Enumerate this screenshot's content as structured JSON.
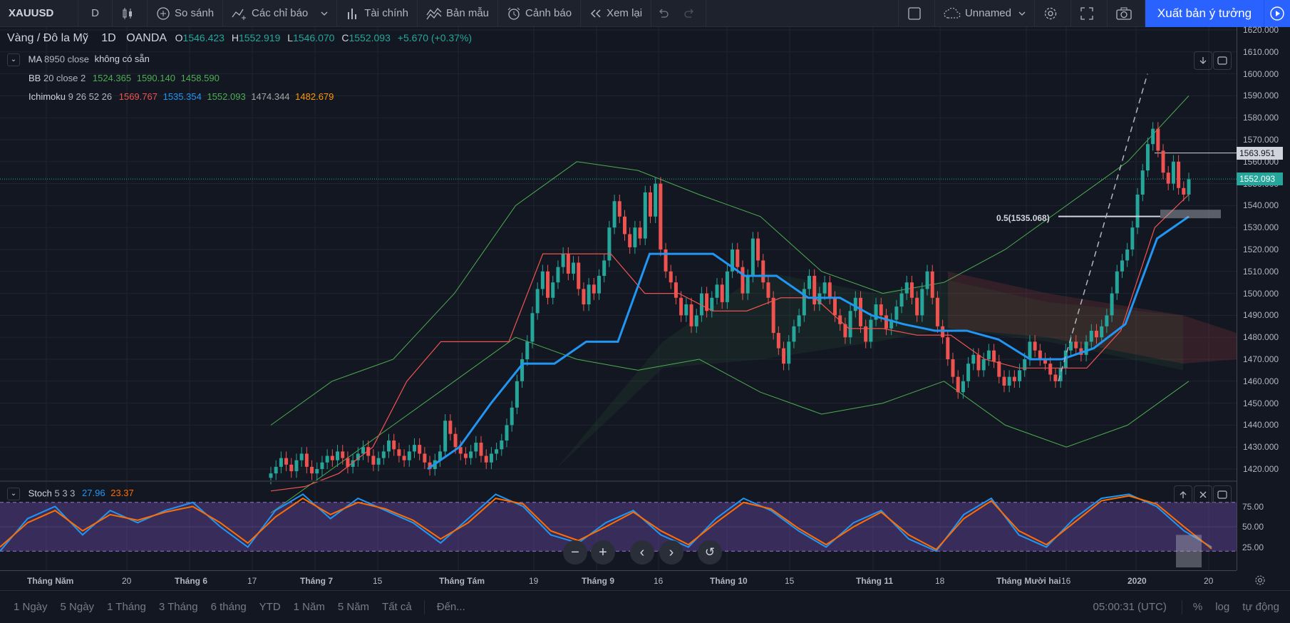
{
  "toolbar": {
    "symbol": "XAUUSD",
    "interval": "D",
    "compare": "So sánh",
    "indicators": "Các chỉ báo",
    "financials": "Tài chính",
    "templates": "Bản mẫu",
    "alert": "Cảnh báo",
    "replay": "Xem lại",
    "layout_name": "Unnamed",
    "publish": "Xuất bản ý tưởng"
  },
  "legend": {
    "title": "Vàng / Đô la Mỹ",
    "interval": "1D",
    "exchange": "OANDA",
    "o_label": "O",
    "o": "1546.423",
    "h_label": "H",
    "h": "1552.919",
    "l_label": "L",
    "l": "1546.070",
    "c_label": "C",
    "c": "1552.093",
    "change": "+5.670 (+0.37%)"
  },
  "indicators": {
    "ma": {
      "name": "MA",
      "params": "8950 close",
      "value": "không có sẵn"
    },
    "bb": {
      "name": "BB",
      "params": "20 close 2",
      "v1": "1524.365",
      "v2": "1590.140",
      "v3": "1458.590"
    },
    "ichimoku": {
      "name": "Ichimoku",
      "params": "9 26 52 26",
      "v1": "1569.767",
      "v2": "1535.354",
      "v3": "1552.093",
      "v4": "1474.344",
      "v5": "1482.679"
    },
    "stoch": {
      "name": "Stoch",
      "params": "5 3 3",
      "k": "27.96",
      "d": "23.37"
    }
  },
  "price_scale": [
    "1620.000",
    "1610.000",
    "1600.000",
    "1590.000",
    "1580.000",
    "1570.000",
    "1560.000",
    "1550.000",
    "1540.000",
    "1530.000",
    "1520.000",
    "1510.000",
    "1500.000",
    "1490.000",
    "1480.000",
    "1470.000",
    "1460.000",
    "1450.000",
    "1440.000",
    "1430.000",
    "1420.000"
  ],
  "price_tags": {
    "crosshair": "1563.951",
    "last": "1552.093"
  },
  "fib_label": "0.5(1535.068)",
  "stoch_scale": [
    "75.00",
    "50.00",
    "25.00"
  ],
  "time_axis": [
    "Tháng Năm",
    "20",
    "Tháng 6",
    "17",
    "Tháng 7",
    "15",
    "Tháng Tám",
    "19",
    "Tháng 9",
    "16",
    "Tháng 10",
    "15",
    "Tháng 11",
    "18",
    "Tháng Mười hai",
    "16",
    "2020",
    "20"
  ],
  "ranges": [
    "1 Ngày",
    "5 Ngày",
    "1 Tháng",
    "3 Tháng",
    "6 tháng",
    "YTD",
    "1 Năm",
    "5 Năm",
    "Tất cả"
  ],
  "goto": "Đến...",
  "clock": "05:00:31 (UTC)",
  "scale_opts": {
    "pct": "%",
    "log": "log",
    "auto": "tự động"
  },
  "colors": {
    "bg": "#131722",
    "up": "#26a69a",
    "down": "#ef5350",
    "accent": "#2962ff"
  },
  "chart_data": {
    "type": "candlestick",
    "title": "Vàng / Đô la Mỹ, 1D, OANDA",
    "ylim": [
      1415,
      1622
    ],
    "last_close": 1552.093,
    "series": [
      {
        "name": "XAUUSD",
        "type": "candles",
        "ohlc_close_path": [
          1418,
          1421,
          1425,
          1422,
          1419,
          1424,
          1427,
          1421,
          1418,
          1420,
          1423,
          1426,
          1424,
          1428,
          1425,
          1421,
          1424,
          1427,
          1430,
          1426,
          1422,
          1425,
          1428,
          1433,
          1429,
          1426,
          1424,
          1428,
          1431,
          1427,
          1423,
          1420,
          1424,
          1428,
          1442,
          1436,
          1430,
          1427,
          1425,
          1428,
          1432,
          1426,
          1423,
          1427,
          1429,
          1433,
          1440,
          1448,
          1460,
          1470,
          1478,
          1491,
          1502,
          1510,
          1498,
          1505,
          1512,
          1518,
          1509,
          1514,
          1502,
          1495,
          1504,
          1500,
          1508,
          1515,
          1530,
          1542,
          1535,
          1527,
          1521,
          1530,
          1525,
          1546,
          1535,
          1550,
          1520,
          1510,
          1505,
          1498,
          1490,
          1495,
          1485,
          1490,
          1500,
          1492,
          1498,
          1504,
          1496,
          1510,
          1520,
          1512,
          1500,
          1508,
          1525,
          1515,
          1505,
          1498,
          1482,
          1475,
          1468,
          1478,
          1485,
          1490,
          1502,
          1508,
          1495,
          1500,
          1505,
          1498,
          1490,
          1486,
          1480,
          1492,
          1498,
          1485,
          1478,
          1488,
          1495,
          1490,
          1484,
          1488,
          1494,
          1500,
          1505,
          1498,
          1490,
          1502,
          1510,
          1498,
          1485,
          1480,
          1470,
          1462,
          1455,
          1460,
          1468,
          1472,
          1465,
          1470,
          1474,
          1469,
          1462,
          1458,
          1462,
          1460,
          1465,
          1470,
          1478,
          1474,
          1470,
          1468,
          1463,
          1460,
          1466,
          1474,
          1478,
          1475,
          1472,
          1478,
          1483,
          1480,
          1485,
          1490,
          1500,
          1510,
          1515,
          1520,
          1530,
          1545,
          1556,
          1568,
          1575,
          1565,
          1555,
          1550,
          1560,
          1548,
          1545,
          1552
        ]
      },
      {
        "name": "Tenkan",
        "type": "line",
        "values": [
          1410,
          1412,
          1418,
          1430,
          1460,
          1478,
          1478,
          1478,
          1518,
          1518,
          1518,
          1500,
          1500,
          1492,
          1492,
          1498,
          1498,
          1484,
          1484,
          1481,
          1481,
          1470,
          1466,
          1466,
          1466,
          1483,
          1530,
          1545
        ]
      },
      {
        "name": "Kijun",
        "type": "line",
        "values": [
          1420,
          1430,
          1450,
          1468,
          1468,
          1478,
          1478,
          1518,
          1518,
          1518,
          1508,
          1508,
          1498,
          1498,
          1490,
          1486,
          1483,
          1483,
          1479,
          1470,
          1470,
          1475,
          1486,
          1525,
          1535
        ]
      },
      {
        "name": "Stoch %K",
        "type": "line",
        "values": [
          20,
          60,
          75,
          40,
          70,
          55,
          70,
          80,
          50,
          25,
          70,
          90,
          60,
          85,
          70,
          55,
          30,
          60,
          90,
          75,
          40,
          30,
          55,
          70,
          40,
          25,
          60,
          85,
          70,
          45,
          25,
          55,
          70,
          35,
          20,
          65,
          85,
          40,
          25,
          60,
          85,
          90,
          75,
          45,
          25
        ]
      },
      {
        "name": "Stoch %D",
        "type": "line",
        "values": [
          25,
          55,
          70,
          45,
          65,
          58,
          68,
          75,
          55,
          30,
          62,
          85,
          65,
          80,
          72,
          58,
          35,
          55,
          85,
          78,
          45,
          33,
          50,
          68,
          45,
          28,
          55,
          80,
          72,
          48,
          28,
          50,
          68,
          40,
          22,
          60,
          82,
          45,
          28,
          55,
          82,
          88,
          78,
          50,
          23
        ]
      }
    ]
  }
}
